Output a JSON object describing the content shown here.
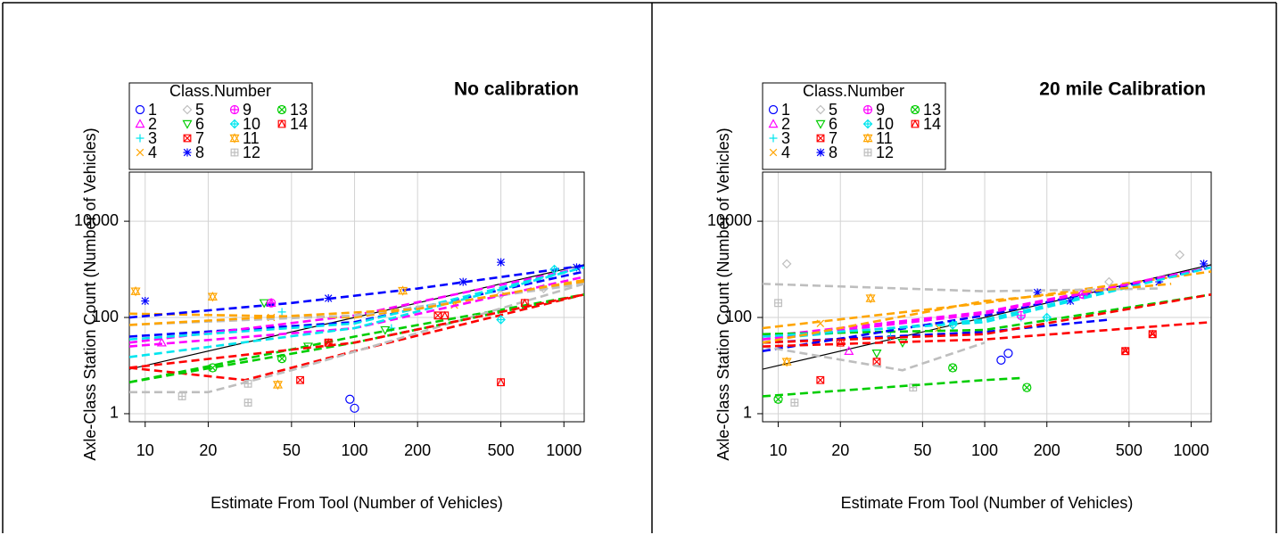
{
  "chart_data": [
    {
      "type": "scatter",
      "title": "No calibration",
      "xlabel": "Estimate From Tool (Number of Vehicles)",
      "ylabel": "Axle-Class Station Count  (Number of Vehicles)",
      "legend_title": "Class.Number",
      "log_x": true,
      "log_y": true,
      "grid": true,
      "xlim": [
        8.4,
        1250
      ],
      "ylim": [
        0.68,
        105000
      ],
      "xticks": [
        10,
        20,
        50,
        100,
        200,
        500,
        1000
      ],
      "yticks": [
        1,
        100,
        10000
      ],
      "reference_line": {
        "color": "#000000",
        "x": [
          8.4,
          1250
        ],
        "values": [
          8.4,
          1250
        ]
      },
      "series": [
        {
          "name": "1",
          "color": "#0000ff",
          "marker": "circle",
          "x": [
            95,
            100
          ],
          "values": [
            2,
            1.3
          ],
          "trend_x": [
            8.4,
            100,
            1250
          ],
          "trend_values": [
            40,
            80,
            900
          ]
        },
        {
          "name": "2",
          "color": "#ff00ff",
          "marker": "triangle",
          "x": [
            12,
            40
          ],
          "values": [
            30,
            200
          ],
          "trend_x": [
            8.4,
            100,
            1250
          ],
          "trend_values": [
            30,
            110,
            1100
          ]
        },
        {
          "name": "3",
          "color": "#00e5ee",
          "marker": "plus",
          "x": [
            45,
            150
          ],
          "values": [
            130,
            60
          ],
          "trend_x": [
            8.4,
            100,
            1250
          ],
          "trend_values": [
            35,
            75,
            1100
          ]
        },
        {
          "name": "4",
          "color": "#ffa500",
          "marker": "cross",
          "x": [
            40,
            300
          ],
          "values": [
            100,
            180
          ],
          "trend_x": [
            8.4,
            100,
            1250
          ],
          "trend_values": [
            120,
            100,
            550
          ]
        },
        {
          "name": "5",
          "color": "#bebebe",
          "marker": "diamond",
          "x": [
            500,
            800
          ],
          "values": [
            300,
            400
          ],
          "trend_x": [
            8.4,
            100,
            1250
          ],
          "trend_values": [
            70,
            110,
            500
          ]
        },
        {
          "name": "6",
          "color": "#00cd00",
          "marker": "down",
          "x": [
            37,
            60,
            140
          ],
          "values": [
            200,
            25,
            55
          ],
          "trend_x": [
            8.4,
            100,
            1250
          ],
          "trend_values": [
            4.5,
            40,
            300
          ]
        },
        {
          "name": "7",
          "color": "#ff0000",
          "marker": "squarex",
          "x": [
            55,
            75,
            250
          ],
          "values": [
            5,
            30,
            110
          ],
          "trend_x": [
            8.4,
            30,
            100,
            1250
          ],
          "trend_values": [
            9,
            5,
            20,
            300
          ]
        },
        {
          "name": "8",
          "color": "#0000ff",
          "marker": "star",
          "x": [
            10,
            75,
            330,
            500,
            1150
          ],
          "values": [
            220,
            250,
            550,
            1400,
            1100
          ],
          "trend_x": [
            8.4,
            50,
            200,
            1250
          ],
          "trend_values": [
            100,
            200,
            400,
            1200
          ]
        },
        {
          "name": "9",
          "color": "#ff00ff",
          "marker": "circleplus",
          "x": [
            40
          ],
          "values": [
            200
          ],
          "trend_x": [
            8.4,
            100,
            1250
          ],
          "trend_values": [
            25,
            60,
            700
          ]
        },
        {
          "name": "10",
          "color": "#00e5ee",
          "marker": "diamondplus",
          "x": [
            500,
            900
          ],
          "values": [
            90,
            1000
          ],
          "trend_x": [
            8.4,
            100,
            1250
          ],
          "trend_values": [
            15,
            60,
            1100
          ]
        },
        {
          "name": "11",
          "color": "#ffa500",
          "marker": "hourglass",
          "x": [
            9,
            21,
            43,
            170
          ],
          "values": [
            350,
            270,
            4,
            360
          ],
          "trend_x": [
            8.4,
            200,
            1250
          ],
          "trend_values": [
            70,
            150,
            600
          ]
        },
        {
          "name": "12",
          "color": "#bebebe",
          "marker": "squareplus",
          "x": [
            15,
            31,
            31
          ],
          "values": [
            2.3,
            1.7,
            4.2
          ],
          "trend_x": [
            8.4,
            20,
            50,
            1250
          ],
          "trend_values": [
            2.8,
            2.8,
            8,
            500
          ]
        },
        {
          "name": "13",
          "color": "#00cd00",
          "marker": "circlex",
          "x": [
            21,
            45
          ],
          "values": [
            9,
            14
          ],
          "trend_x": [
            8.4,
            100,
            1250
          ],
          "trend_values": [
            4.5,
            30,
            300
          ]
        },
        {
          "name": "14",
          "color": "#ff0000",
          "marker": "squaretri",
          "x": [
            75,
            270,
            500,
            650
          ],
          "values": [
            30,
            110,
            4.5,
            200
          ],
          "trend_x": [
            8.4,
            100,
            1250
          ],
          "trend_values": [
            9,
            30,
            300
          ]
        }
      ]
    },
    {
      "type": "scatter",
      "title": "20 mile Calibration",
      "xlabel": "Estimate From Tool (Number of Vehicles)",
      "ylabel": "Axle-Class Station Count  (Number of Vehicles)",
      "legend_title": "Class.Number",
      "log_x": true,
      "log_y": true,
      "grid": true,
      "xlim": [
        8.4,
        1250
      ],
      "ylim": [
        0.68,
        105000
      ],
      "xticks": [
        10,
        20,
        50,
        100,
        200,
        500,
        1000
      ],
      "yticks": [
        1,
        100,
        10000
      ],
      "reference_line": {
        "color": "#000000",
        "x": [
          8.4,
          1250
        ],
        "values": [
          8.4,
          1250
        ]
      },
      "series": [
        {
          "name": "1",
          "color": "#0000ff",
          "marker": "circle",
          "x": [
            120,
            130
          ],
          "values": [
            13,
            18
          ],
          "trend_x": [
            8.4,
            100,
            400
          ],
          "trend_values": [
            30,
            50,
            90
          ]
        },
        {
          "name": "2",
          "color": "#ff00ff",
          "marker": "triangle",
          "x": [
            22,
            300
          ],
          "values": [
            20,
            300
          ],
          "trend_x": [
            8.4,
            100,
            1250
          ],
          "trend_values": [
            40,
            130,
            1100
          ]
        },
        {
          "name": "3",
          "color": "#00e5ee",
          "marker": "plus",
          "x": [
            35,
            150
          ],
          "values": [
            40,
            100
          ],
          "trend_x": [
            8.4,
            100,
            1250
          ],
          "trend_values": [
            35,
            90,
            1100
          ]
        },
        {
          "name": "4",
          "color": "#ffa500",
          "marker": "cross",
          "x": [
            16,
            60
          ],
          "values": [
            75,
            60
          ],
          "trend_x": [
            8.4,
            100,
            1250
          ],
          "trend_values": [
            60,
            200,
            900
          ]
        },
        {
          "name": "5",
          "color": "#bebebe",
          "marker": "diamond",
          "x": [
            11,
            880,
            400
          ],
          "values": [
            1300,
            2000,
            550
          ],
          "trend_x": [
            8.4,
            100,
            700
          ],
          "trend_values": [
            500,
            350,
            400
          ]
        },
        {
          "name": "6",
          "color": "#00cd00",
          "marker": "down",
          "x": [
            40,
            30
          ],
          "values": [
            30,
            18
          ],
          "trend_x": [
            8.4,
            100,
            1250
          ],
          "trend_values": [
            45,
            55,
            300
          ]
        },
        {
          "name": "7",
          "color": "#ff0000",
          "marker": "squarex",
          "x": [
            16,
            30,
            480,
            650
          ],
          "values": [
            5,
            12,
            20,
            45
          ],
          "trend_x": [
            8.4,
            100,
            1250
          ],
          "trend_values": [
            30,
            45,
            300
          ]
        },
        {
          "name": "8",
          "color": "#0000ff",
          "marker": "star",
          "x": [
            180,
            260,
            700,
            1150
          ],
          "values": [
            330,
            220,
            550,
            1300
          ],
          "trend_x": [
            8.4,
            100,
            1250
          ],
          "trend_values": [
            20,
            110,
            1100
          ]
        },
        {
          "name": "9",
          "color": "#ff00ff",
          "marker": "circleplus",
          "x": [
            150,
            300
          ],
          "values": [
            110,
            300
          ],
          "trend_x": [
            8.4,
            100,
            1250
          ],
          "trend_values": [
            35,
            120,
            1100
          ]
        },
        {
          "name": "10",
          "color": "#00e5ee",
          "marker": "diamondplus",
          "x": [
            70,
            200
          ],
          "values": [
            70,
            100
          ],
          "trend_x": [
            8.4,
            100,
            1250
          ],
          "trend_values": [
            40,
            80,
            1100
          ]
        },
        {
          "name": "11",
          "color": "#ffa500",
          "marker": "hourglass",
          "x": [
            11,
            28
          ],
          "values": [
            12,
            250
          ],
          "trend_x": [
            8.4,
            100,
            800
          ],
          "trend_values": [
            30,
            220,
            500
          ]
        },
        {
          "name": "12",
          "color": "#bebebe",
          "marker": "squareplus",
          "x": [
            10,
            12,
            45
          ],
          "values": [
            200,
            1.7,
            3.5
          ],
          "trend_x": [
            8.4,
            40,
            100
          ],
          "trend_values": [
            25,
            8,
            30
          ]
        },
        {
          "name": "13",
          "color": "#00cd00",
          "marker": "circlex",
          "x": [
            10,
            70,
            160
          ],
          "values": [
            2,
            9,
            3.5
          ],
          "trend_x": [
            8.4,
            100,
            150
          ],
          "trend_values": [
            2.3,
            5,
            5.5
          ]
        },
        {
          "name": "14",
          "color": "#ff0000",
          "marker": "squaretri",
          "x": [
            20,
            480,
            650
          ],
          "values": [
            30,
            20,
            45
          ],
          "trend_x": [
            8.4,
            100,
            1250
          ],
          "trend_values": [
            25,
            35,
            80
          ]
        }
      ]
    }
  ]
}
